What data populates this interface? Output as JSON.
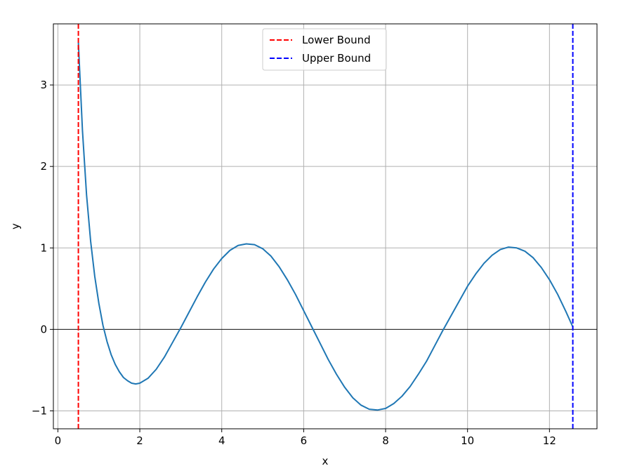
{
  "chart_data": {
    "type": "line",
    "title": "",
    "xlabel": "x",
    "ylabel": "y",
    "xlim": [
      -0.11,
      13.16
    ],
    "ylim": [
      -1.22,
      3.75
    ],
    "grid": true,
    "legend_position": "top-center",
    "x_ticks": [
      0,
      2,
      4,
      6,
      8,
      10,
      12
    ],
    "y_ticks": [
      -1,
      0,
      1,
      2,
      3
    ],
    "x_tick_labels": [
      "0",
      "2",
      "4",
      "6",
      "8",
      "10",
      "12"
    ],
    "y_tick_labels": [
      "−1",
      "0",
      "1",
      "2",
      "3"
    ],
    "zero_line": {
      "y": 0,
      "color": "#000000"
    },
    "series": [
      {
        "type": "line",
        "color": "#1f77b4",
        "x": [
          0.5,
          0.6,
          0.7,
          0.8,
          0.9,
          1.0,
          1.1,
          1.2,
          1.3,
          1.4,
          1.5,
          1.6,
          1.7,
          1.8,
          1.9,
          2.0,
          2.2,
          2.4,
          2.6,
          2.8,
          3.0,
          3.2,
          3.4,
          3.6,
          3.8,
          4.0,
          4.2,
          4.4,
          4.6,
          4.8,
          5.0,
          5.2,
          5.4,
          5.6,
          5.8,
          6.0,
          6.2,
          6.4,
          6.6,
          6.8,
          7.0,
          7.2,
          7.4,
          7.6,
          7.8,
          8.0,
          8.2,
          8.4,
          8.6,
          8.8,
          9.0,
          9.2,
          9.4,
          9.6,
          9.8,
          10.0,
          10.2,
          10.4,
          10.6,
          10.8,
          11.0,
          11.2,
          11.4,
          11.6,
          11.8,
          12.0,
          12.2,
          12.4,
          12.57
        ],
        "y": [
          3.52,
          2.44,
          1.65,
          1.08,
          0.65,
          0.32,
          0.05,
          -0.15,
          -0.31,
          -0.43,
          -0.52,
          -0.59,
          -0.63,
          -0.66,
          -0.67,
          -0.66,
          -0.6,
          -0.49,
          -0.34,
          -0.16,
          0.02,
          0.21,
          0.4,
          0.58,
          0.74,
          0.87,
          0.97,
          1.03,
          1.05,
          1.04,
          0.99,
          0.9,
          0.77,
          0.61,
          0.43,
          0.23,
          0.03,
          -0.17,
          -0.37,
          -0.55,
          -0.71,
          -0.84,
          -0.93,
          -0.98,
          -0.99,
          -0.97,
          -0.91,
          -0.82,
          -0.7,
          -0.55,
          -0.39,
          -0.2,
          -0.01,
          0.17,
          0.35,
          0.53,
          0.68,
          0.81,
          0.91,
          0.98,
          1.01,
          1.0,
          0.96,
          0.88,
          0.76,
          0.61,
          0.43,
          0.22,
          0.03
        ]
      },
      {
        "type": "vline",
        "name": "Lower Bound",
        "x": 0.5,
        "color": "#ff0000",
        "style": "dashed"
      },
      {
        "type": "vline",
        "name": "Upper Bound",
        "x": 12.57,
        "color": "#0000ff",
        "style": "dashed"
      }
    ]
  }
}
